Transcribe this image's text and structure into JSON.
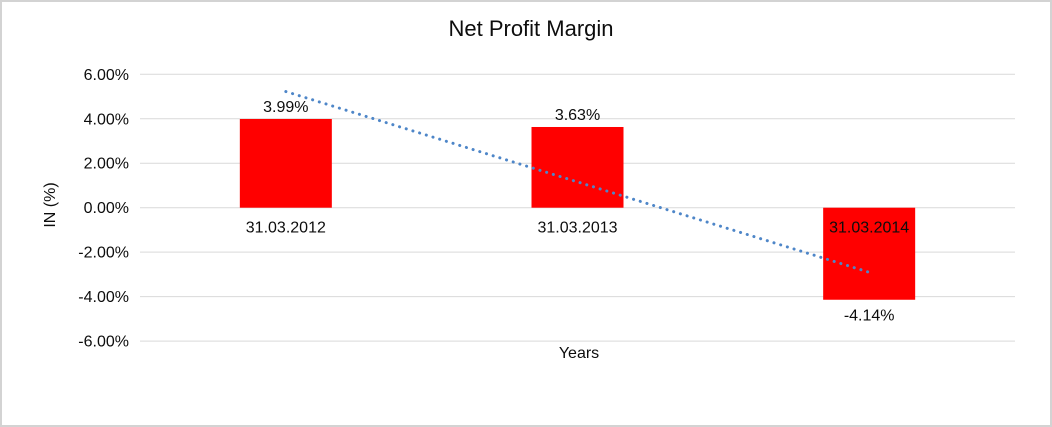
{
  "frame": {
    "background": "#ffffff",
    "border_color": "#d3d3d3"
  },
  "chart_data": {
    "type": "bar",
    "title": "Net Profit Margin",
    "categories": [
      "31.03.2012",
      "31.03.2013",
      "31.03.2014"
    ],
    "values": [
      3.99,
      3.63,
      -4.14
    ],
    "data_labels": [
      "3.99%",
      "3.63%",
      "-4.14%"
    ],
    "xlabel": "Years",
    "ylabel": "IN (%)",
    "ylim": [
      -6,
      6
    ],
    "ytick_step": 2,
    "ytick_labels": [
      "6.00%",
      "4.00%",
      "2.00%",
      "0.00%",
      "-2.00%",
      "-4.00%",
      "-6.00%"
    ],
    "grid": true,
    "legend": "none",
    "bar_color": "#ff0000",
    "gridline_color": "#d9d9d9",
    "text_color": "#0d0d0d",
    "trendline": {
      "type": "linear",
      "style": "dotted",
      "color": "#4e86c8"
    }
  }
}
